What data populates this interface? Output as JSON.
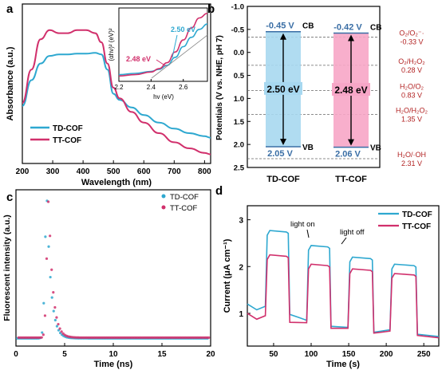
{
  "colors": {
    "td": "#2ea8d0",
    "tt": "#d1306c",
    "axis": "#000000",
    "blue_box": "#a7d8f0",
    "pink_box": "#f7a6c7",
    "dark_red": "#b22222",
    "blue_text": "#3a6ea5"
  },
  "chart_data": [
    {
      "panel": "a",
      "type": "line",
      "xlabel": "Wavelength (nm)",
      "ylabel": "Absorbance (a.u.)",
      "xlim": [
        200,
        820
      ],
      "xticks": [
        "200",
        "300",
        "400",
        "500",
        "600",
        "700",
        "800"
      ],
      "legend": "bottom-left",
      "series": [
        {
          "name": "TD-COF",
          "x": [
            200,
            230,
            260,
            290,
            320,
            350,
            380,
            410,
            440,
            460,
            480,
            500,
            520,
            560,
            600,
            650,
            700,
            750,
            800,
            820
          ],
          "y": [
            0.38,
            0.55,
            0.66,
            0.71,
            0.72,
            0.72,
            0.725,
            0.725,
            0.73,
            0.72,
            0.62,
            0.46,
            0.42,
            0.37,
            0.32,
            0.27,
            0.23,
            0.2,
            0.18,
            0.17
          ]
        },
        {
          "name": "TT-COF",
          "x": [
            200,
            230,
            260,
            290,
            320,
            350,
            380,
            410,
            440,
            460,
            480,
            500,
            520,
            560,
            600,
            650,
            700,
            750,
            800,
            820
          ],
          "y": [
            0.4,
            0.62,
            0.82,
            0.88,
            0.86,
            0.86,
            0.88,
            0.88,
            0.86,
            0.8,
            0.66,
            0.5,
            0.43,
            0.34,
            0.27,
            0.2,
            0.14,
            0.1,
            0.07,
            0.06
          ]
        }
      ],
      "inset": {
        "xlabel": "hv (eV)",
        "ylabel": "(αhν)² (eV)²",
        "xlim": [
          2.2,
          2.75
        ],
        "xticks": [
          "2.2",
          "2.4",
          "2.6"
        ],
        "annotations": [
          {
            "text": "2.48 eV",
            "color_key": "tt"
          },
          {
            "text": "2.50 eV",
            "color_key": "td"
          }
        ],
        "series": [
          {
            "name": "TD-COF",
            "x": [
              2.2,
              2.3,
              2.4,
              2.45,
              2.5,
              2.55,
              2.6,
              2.65,
              2.7,
              2.75
            ],
            "y": [
              0.1,
              0.12,
              0.15,
              0.18,
              0.24,
              0.36,
              0.52,
              0.66,
              0.78,
              0.86
            ]
          },
          {
            "name": "TT-COF",
            "x": [
              2.2,
              2.3,
              2.4,
              2.45,
              2.5,
              2.55,
              2.6,
              2.65,
              2.7,
              2.75
            ],
            "y": [
              0.08,
              0.1,
              0.14,
              0.19,
              0.28,
              0.44,
              0.62,
              0.8,
              0.95,
              1.02
            ]
          }
        ]
      }
    },
    {
      "panel": "b",
      "type": "diagram",
      "ylabel": "Potentials (V vs. NHE, pH 7)",
      "ylim": [
        -1.0,
        2.5
      ],
      "yticks": [
        "-1.0",
        "-0.5",
        "0.0",
        "0.5",
        "1.0",
        "1.5",
        "2.0",
        "2.5"
      ],
      "categories": [
        "TD-COF",
        "TT-COF"
      ],
      "bands": [
        {
          "name": "TD-COF",
          "cb": -0.45,
          "vb": 2.05,
          "cb_label": "-0.45 V",
          "vb_label": "2.05 V",
          "gap_label": "2.50 eV",
          "color_key": "blue_box"
        },
        {
          "name": "TT-COF",
          "cb": -0.42,
          "vb": 2.06,
          "cb_label": "-0.42 V",
          "vb_label": "2.06 V",
          "gap_label": "2.48 eV",
          "color_key": "pink_box"
        }
      ],
      "band_tags": {
        "cb": "CB",
        "vb": "VB"
      },
      "redox_levels": [
        {
          "label": "O₂/O₂⁻·",
          "value_label": "-0.33 V",
          "value": -0.33
        },
        {
          "label": "O₂/H₂O₂",
          "value_label": "0.28 V",
          "value": 0.28
        },
        {
          "label": "H₂O/O₂",
          "value_label": "0.83 V",
          "value": 0.83
        },
        {
          "label": "H₂O/H₂O₂",
          "value_label": "1.35 V",
          "value": 1.35
        },
        {
          "label": "H₂O/·OH",
          "value_label": "2.31 V",
          "value": 2.31
        }
      ]
    },
    {
      "panel": "c",
      "type": "scatter",
      "xlabel": "Time (ns)",
      "ylabel": "Fluorescent intensity (a.u.)",
      "xlim": [
        0,
        20
      ],
      "xticks": [
        "0",
        "5",
        "10",
        "15",
        "20"
      ],
      "legend": "top-right",
      "series": [
        {
          "name": "TD-COF",
          "peak_time": 3.25,
          "peak": 0.98,
          "baseline": 0.02
        },
        {
          "name": "TT-COF",
          "peak_time": 3.3,
          "peak": 0.97,
          "baseline": 0.025
        }
      ]
    },
    {
      "panel": "d",
      "type": "line",
      "xlabel": "Time (s)",
      "ylabel": "Current (μA cm⁻¹)",
      "xlim": [
        15,
        270
      ],
      "ylim": [
        0.3,
        3.3
      ],
      "xticks": [
        "50",
        "100",
        "150",
        "200",
        "250"
      ],
      "yticks": [
        "1",
        "2",
        "3"
      ],
      "legend": "top-right",
      "annotations": [
        "light on",
        "light off"
      ],
      "on_intervals": [
        [
          40,
          70
        ],
        [
          95,
          125
        ],
        [
          150,
          182
        ],
        [
          206,
          240
        ]
      ],
      "series": [
        {
          "name": "TD-COF",
          "plateaus": [
            2.77,
            2.45,
            2.2,
            2.05
          ],
          "dark": [
            1.15,
            0.85,
            0.7,
            0.65
          ]
        },
        {
          "name": "TT-COF",
          "plateaus": [
            2.25,
            2.05,
            1.95,
            1.85
          ],
          "dark": [
            0.95,
            0.8,
            0.68,
            0.62
          ]
        }
      ]
    }
  ],
  "panel_letters": [
    "a",
    "b",
    "c",
    "d"
  ]
}
